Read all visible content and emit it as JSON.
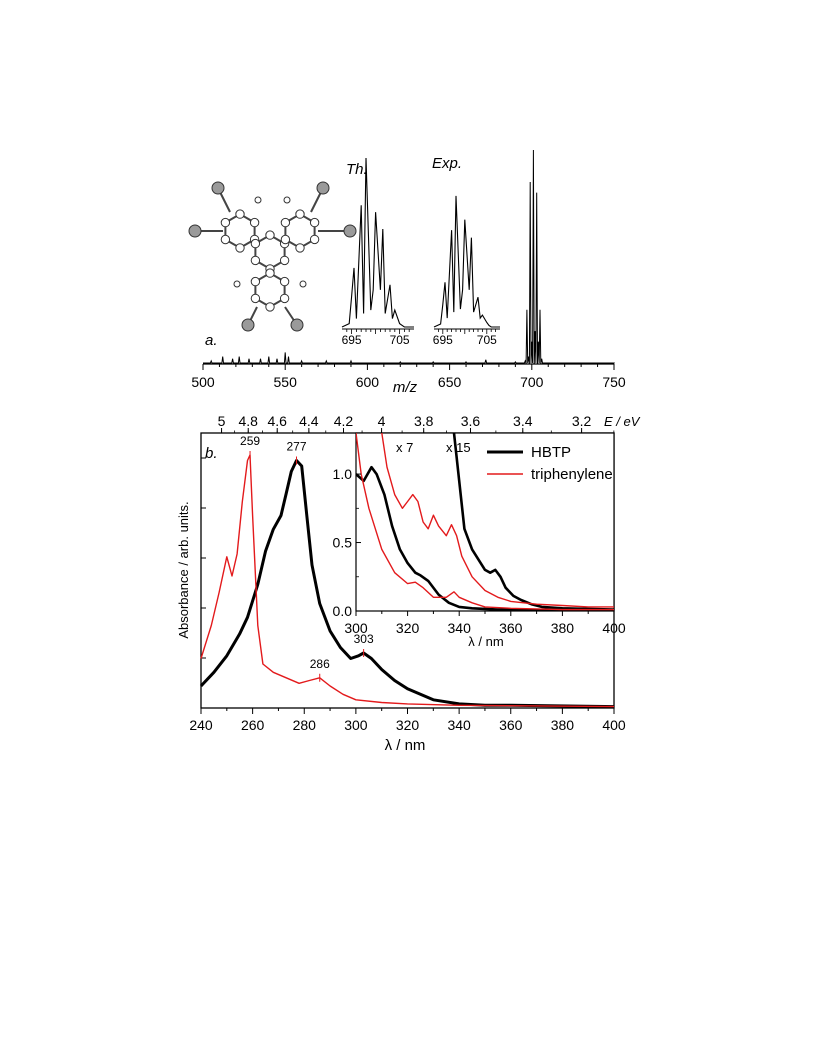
{
  "chart_data": [
    {
      "id": "a",
      "type": "line",
      "panel_label": "a.",
      "xlabel": "m/z",
      "xlim": [
        500,
        750
      ],
      "x_ticks": [
        500,
        550,
        600,
        650,
        700,
        750
      ],
      "series": [
        {
          "color": "#000000",
          "x": [
            505,
            512,
            518,
            522,
            528,
            535,
            540,
            545,
            550,
            552,
            560,
            575,
            590,
            620,
            640,
            660,
            672,
            690,
            696,
            697,
            698,
            699,
            700,
            701,
            702,
            703,
            704,
            705,
            706,
            710,
            720,
            750
          ],
          "y": [
            0.01,
            0.03,
            0.02,
            0.03,
            0.02,
            0.02,
            0.03,
            0.02,
            0.05,
            0.03,
            0.01,
            0.01,
            0.01,
            0.005,
            0.005,
            0.005,
            0.015,
            0.005,
            0.01,
            0.25,
            0.03,
            0.85,
            0.1,
            1.0,
            0.15,
            0.8,
            0.1,
            0.25,
            0.02,
            0.0,
            0.0,
            0.0
          ]
        }
      ],
      "insets": [
        {
          "label": "Th.",
          "x_ticks": [
            695,
            705
          ],
          "xlim": [
            693,
            708
          ],
          "x": [
            693,
            694.5,
            695,
            695.5,
            696,
            697,
            697.5,
            698,
            699,
            699.5,
            700,
            701,
            701.5,
            702,
            703,
            703.5,
            704,
            705,
            705.5,
            706,
            708
          ],
          "y": [
            0.0,
            0.02,
            0.18,
            0.35,
            0.05,
            0.72,
            0.08,
            1.0,
            0.1,
            0.22,
            0.68,
            0.22,
            0.58,
            0.08,
            0.25,
            0.05,
            0.1,
            0.02,
            0.01,
            0.0,
            0.0
          ]
        },
        {
          "label": "Exp.",
          "x_ticks": [
            695,
            705
          ],
          "xlim": [
            693,
            708
          ],
          "x": [
            693,
            694.5,
            695,
            695.5,
            696,
            697,
            697.5,
            698,
            699,
            699.5,
            700,
            701,
            701.5,
            702,
            703,
            703.5,
            704,
            705,
            705.5,
            706,
            708
          ],
          "y": [
            0.0,
            0.02,
            0.15,
            0.3,
            0.06,
            0.65,
            0.1,
            0.88,
            0.12,
            0.25,
            0.72,
            0.25,
            0.6,
            0.1,
            0.2,
            0.06,
            0.08,
            0.03,
            0.01,
            0.0,
            0.0
          ]
        }
      ]
    },
    {
      "id": "b",
      "type": "line",
      "panel_label": "b.",
      "xlabel": "λ / nm",
      "ylabel": "Absorbance / arb. units.",
      "xlim": [
        240,
        400
      ],
      "x_ticks": [
        240,
        260,
        280,
        300,
        320,
        340,
        360,
        380,
        400
      ],
      "top_axis": {
        "label": "E / eV",
        "ticks": [
          5,
          4.8,
          4.6,
          4.4,
          4.2,
          4,
          3.8,
          3.6,
          3.4,
          3.2
        ]
      },
      "legend": {
        "placement": "top-right"
      },
      "series": [
        {
          "name": "HBTP",
          "color": "#000000",
          "x": [
            240,
            245,
            250,
            255,
            258,
            262,
            265,
            268,
            271,
            273,
            275,
            277,
            279,
            281,
            283,
            286,
            290,
            294,
            298,
            301,
            303,
            306,
            310,
            315,
            320,
            325,
            330,
            340,
            350,
            360,
            400
          ],
          "y": [
            0.08,
            0.13,
            0.19,
            0.27,
            0.33,
            0.45,
            0.57,
            0.65,
            0.7,
            0.78,
            0.86,
            0.9,
            0.88,
            0.7,
            0.52,
            0.38,
            0.28,
            0.22,
            0.18,
            0.19,
            0.2,
            0.18,
            0.14,
            0.1,
            0.07,
            0.05,
            0.03,
            0.015,
            0.01,
            0.01,
            0.005
          ]
        },
        {
          "name": "triphenylene",
          "color": "#e31a1c",
          "x": [
            240,
            244,
            247,
            250,
            252,
            254,
            256,
            258,
            259,
            260,
            262,
            264,
            268,
            273,
            278,
            282,
            286,
            290,
            295,
            300,
            310,
            320,
            340,
            400
          ],
          "y": [
            0.18,
            0.3,
            0.42,
            0.55,
            0.48,
            0.56,
            0.75,
            0.9,
            0.92,
            0.7,
            0.3,
            0.16,
            0.13,
            0.11,
            0.09,
            0.1,
            0.11,
            0.08,
            0.05,
            0.03,
            0.02,
            0.015,
            0.01,
            0.005
          ]
        }
      ],
      "peak_labels": [
        {
          "text": "259",
          "x": 259,
          "series": "triphenylene"
        },
        {
          "text": "277",
          "x": 277,
          "series": "HBTP"
        },
        {
          "text": "286",
          "x": 286,
          "series": "triphenylene"
        },
        {
          "text": "303",
          "x": 303,
          "series": "HBTP"
        }
      ],
      "inset": {
        "xlabel": "λ / nm",
        "xlim": [
          300,
          400
        ],
        "ylim": [
          0.0,
          1.3
        ],
        "x_ticks": [
          300,
          320,
          340,
          360,
          380,
          400
        ],
        "y_ticks": [
          "0.0",
          "0.5",
          "1.0"
        ],
        "y_tick_values": [
          0.0,
          0.5,
          1.0
        ],
        "scale_labels": [
          "x 7",
          "x 15"
        ],
        "series": [
          {
            "name": "HBTP",
            "color": "#000000",
            "x": [
              300,
              303,
              306,
              308,
              311,
              314,
              317,
              320,
              323,
              325,
              328,
              332,
              336,
              340,
              345,
              350,
              355,
              360,
              365,
              370,
              380,
              390,
              400
            ],
            "y": [
              1.0,
              0.95,
              1.05,
              1.0,
              0.85,
              0.62,
              0.45,
              0.35,
              0.28,
              0.26,
              0.22,
              0.12,
              0.06,
              0.03,
              0.02,
              0.015,
              0.01,
              0.01,
              0.008,
              0.005,
              0.004,
              0.003,
              0.003
            ]
          },
          {
            "name": "HBTP x15",
            "color": "#000000",
            "x": [
              338,
              340,
              342,
              345,
              348,
              350,
              352,
              354,
              356,
              358,
              361,
              364,
              368,
              372,
              380,
              390,
              400
            ],
            "y": [
              1.3,
              0.95,
              0.6,
              0.45,
              0.36,
              0.3,
              0.28,
              0.3,
              0.25,
              0.17,
              0.11,
              0.08,
              0.05,
              0.03,
              0.02,
              0.015,
              0.01
            ]
          },
          {
            "name": "triphenylene",
            "color": "#e31a1c",
            "x": [
              300,
              302,
              305,
              310,
              315,
              320,
              323,
              326,
              330,
              335,
              338,
              340,
              345,
              350,
              360,
              380,
              400
            ],
            "y": [
              1.3,
              1.0,
              0.75,
              0.45,
              0.28,
              0.2,
              0.21,
              0.17,
              0.1,
              0.1,
              0.14,
              0.1,
              0.06,
              0.03,
              0.02,
              0.01,
              0.01
            ]
          },
          {
            "name": "triphenylene x7",
            "color": "#e31a1c",
            "x": [
              310,
              312,
              315,
              318,
              320,
              322,
              324,
              326,
              328,
              330,
              332,
              335,
              337,
              339,
              341,
              345,
              350,
              355,
              360,
              370,
              380,
              390,
              400
            ],
            "y": [
              1.3,
              1.05,
              0.85,
              0.75,
              0.8,
              0.85,
              0.8,
              0.65,
              0.6,
              0.7,
              0.62,
              0.55,
              0.63,
              0.55,
              0.4,
              0.25,
              0.15,
              0.1,
              0.07,
              0.05,
              0.04,
              0.03,
              0.03
            ]
          }
        ]
      }
    }
  ]
}
